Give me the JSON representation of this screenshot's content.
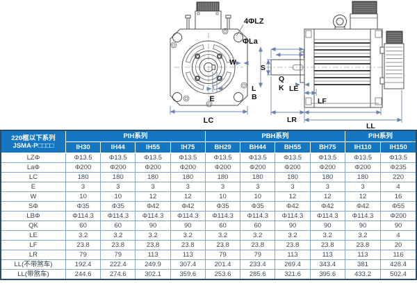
{
  "drawings": {
    "front_view": {
      "labels": {
        "mounting_holes": "4ΦLZ",
        "flange_diameter": "ΦLa",
        "keyway_width": "W",
        "keyway_depth": "E",
        "flange_width": "LC",
        "pilot_line1": "L",
        "pilot_line2": "B"
      }
    },
    "side_view": {
      "labels": {
        "shaft_diameter": "S",
        "keyway_length": "Q",
        "key_dim": "K",
        "pilot_depth": "LE",
        "flange_thickness": "LF",
        "shaft_length": "LR",
        "body_length": "LL"
      }
    }
  },
  "table": {
    "corner": {
      "line1": "220框以下系列",
      "line2": "JSMA-P□□□□"
    },
    "groups": [
      {
        "label": "PIH系列",
        "span": 4
      },
      {
        "label": "PBH系列",
        "span": 4
      },
      {
        "label": "PIH系列",
        "span": 2
      }
    ],
    "models": [
      "IH30",
      "IH44",
      "IH55",
      "IH75",
      "BH29",
      "BH44",
      "BH55",
      "BH75",
      "IH110",
      "IH150"
    ],
    "rows": [
      {
        "label": "LZΦ",
        "values": [
          "Φ13.5",
          "Φ13.5",
          "Φ13.5",
          "Φ13.5",
          "Φ13.5",
          "Φ13.5",
          "Φ13.5",
          "Φ13.5",
          "Φ13.5",
          "Φ13.5"
        ]
      },
      {
        "label": "LaΦ",
        "values": [
          "Φ200",
          "Φ200",
          "Φ200",
          "Φ200",
          "Φ200",
          "Φ200",
          "Φ200",
          "Φ200",
          "Φ200",
          "Φ235"
        ]
      },
      {
        "label": "LC",
        "values": [
          "180",
          "180",
          "180",
          "180",
          "180",
          "180",
          "180",
          "180",
          "180",
          "220"
        ]
      },
      {
        "label": "E",
        "values": [
          "3",
          "3",
          "3",
          "3",
          "3",
          "3",
          "3",
          "3",
          "3",
          "4"
        ]
      },
      {
        "label": "W",
        "values": [
          "10",
          "10",
          "12",
          "12",
          "10",
          "10",
          "12",
          "12",
          "12",
          "16"
        ]
      },
      {
        "label": "SΦ",
        "values": [
          "Φ35",
          "Φ35",
          "Φ42",
          "Φ42",
          "Φ35",
          "Φ35",
          "Φ42",
          "Φ42",
          "Φ42",
          "Φ55"
        ]
      },
      {
        "label": "LBΦ",
        "values": [
          "Φ114.3",
          "Φ114.3",
          "Φ114.3",
          "Φ114.3",
          "Φ114.3",
          "Φ114.3",
          "Φ114.3",
          "Φ114.3",
          "Φ114.3",
          "Φ200"
        ]
      },
      {
        "label": "QK",
        "values": [
          "60",
          "60",
          "90",
          "90",
          "60",
          "60",
          "90",
          "90",
          "90",
          "90"
        ]
      },
      {
        "label": "LE",
        "values": [
          "3.2",
          "3.2",
          "3.2",
          "3.2",
          "3.2",
          "3.2",
          "3.2",
          "3.2",
          "3.2",
          "4"
        ]
      },
      {
        "label": "LF",
        "values": [
          "23.8",
          "23.8",
          "23.8",
          "23.8",
          "23.8",
          "23.8",
          "23.8",
          "23.8",
          "23.8",
          "20"
        ]
      },
      {
        "label": "LR",
        "values": [
          "79",
          "79",
          "113",
          "113",
          "79",
          "79",
          "113",
          "113",
          "113",
          "116"
        ]
      },
      {
        "label": "LL(不带煞车)",
        "values": [
          "192.4",
          "222.4",
          "249.9",
          "307.4",
          "201.4",
          "233.4",
          "269.4",
          "343.4",
          "381",
          "428.4"
        ]
      },
      {
        "label": "LL(带煞车)",
        "values": [
          "244.6",
          "274.6",
          "302.1",
          "359.6",
          "253.6",
          "285.6",
          "321.6",
          "395.6",
          "433.2",
          "502.4"
        ]
      }
    ]
  },
  "colors": {
    "header_bg": "#1577c2",
    "grid_line": "#7fa8cc",
    "outer_border": "#2a4a66",
    "dim_line": "#6b84ad",
    "cell_text": "#3d4752"
  }
}
